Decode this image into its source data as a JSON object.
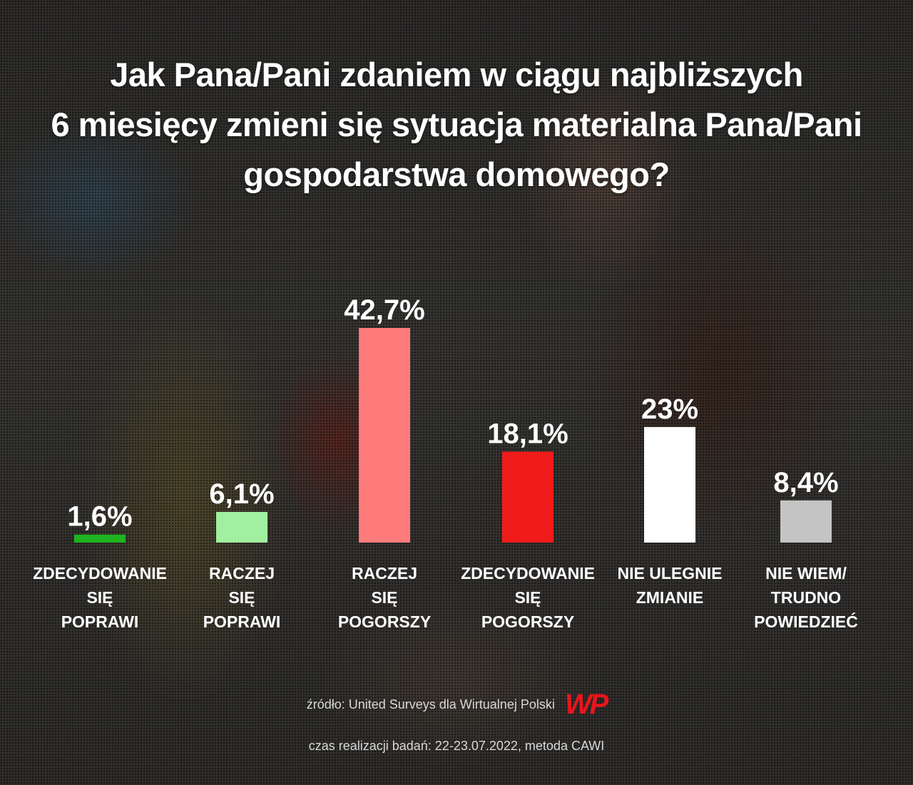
{
  "title_lines": [
    "Jak Pana/Pani zdaniem w ciągu najbliższych",
    "6 miesięcy zmieni się sytuacja materialna Pana/Pani",
    "gospodarstwa domowego?"
  ],
  "chart_data": {
    "type": "bar",
    "title": "Jak Pana/Pani zdaniem w ciągu najbliższych 6 miesięcy zmieni się sytuacja materialna Pana/Pani gospodarstwa domowego?",
    "unit": "%",
    "ylim": [
      0,
      42.7
    ],
    "grid": false,
    "legend": "none",
    "categories": [
      "ZDECYDOWANIE SIĘ POPRAWI",
      "RACZEJ SIĘ POPRAWI",
      "RACZEJ SIĘ POGORSZY",
      "ZDECYDOWANIE SIĘ POGORSZY",
      "NIE ULEGNIE ZMIANIE",
      "NIE WIEM/ TRUDNO POWIEDZIEĆ"
    ],
    "category_lines": [
      [
        "ZDECYDOWANIE",
        "SIĘ",
        "POPRAWI"
      ],
      [
        "RACZEJ",
        "SIĘ",
        "POPRAWI"
      ],
      [
        "RACZEJ",
        "SIĘ",
        "POGORSZY"
      ],
      [
        "ZDECYDOWANIE",
        "SIĘ",
        "POGORSZY"
      ],
      [
        "NIE ULEGNIE",
        "ZMIANIE"
      ],
      [
        "NIE WIEM/",
        "TRUDNO",
        "POWIEDZIEĆ"
      ]
    ],
    "values": [
      1.6,
      6.1,
      42.7,
      18.1,
      23,
      8.4
    ],
    "value_labels": [
      "1,6%",
      "6,1%",
      "42,7%",
      "18,1%",
      "23%",
      "8,4%"
    ],
    "colors": [
      "#1fb31f",
      "#a0f0a0",
      "#ff7b7b",
      "#f01c1c",
      "#ffffff",
      "#c4c4c4"
    ]
  },
  "footer": {
    "source": "źródło: United Surveys dla Wirtualnej Polski",
    "method": "czas realizacji badań: 22-23.07.2022, metoda CAWI",
    "logo_text": "WP",
    "logo_color": "#e8161c"
  }
}
